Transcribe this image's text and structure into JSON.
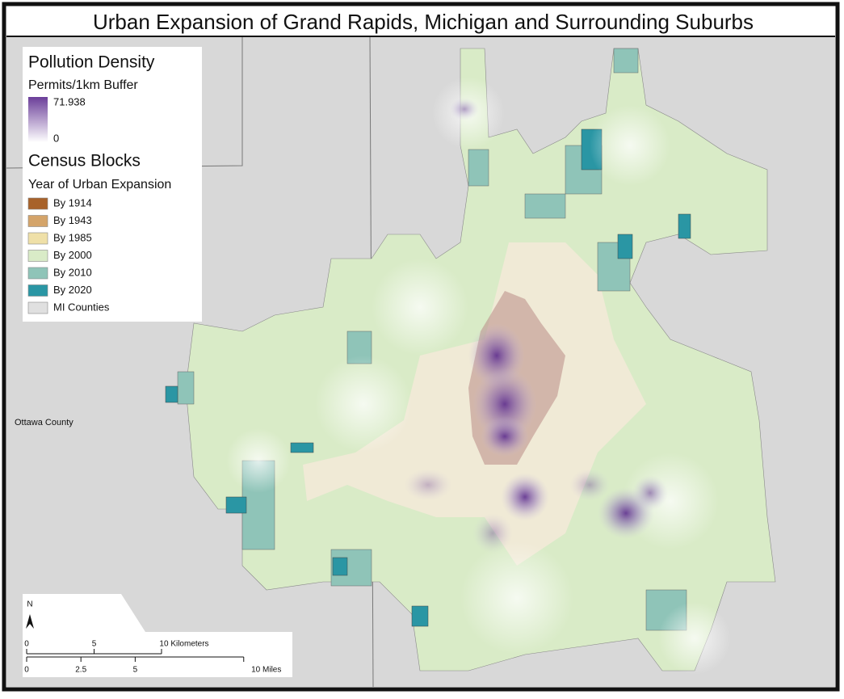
{
  "header": {
    "title": "Urban Expansion of Grand Rapids, Michigan and Surrounding Suburbs"
  },
  "legend": {
    "density_title": "Pollution Density",
    "density_subtitle": "Permits/1km Buffer",
    "density_max": 71.938,
    "density_min": 0,
    "density_colors": [
      "#6b3e99",
      "#ffffff"
    ],
    "blocks_title": "Census Blocks",
    "blocks_subtitle": "Year of Urban Expansion",
    "items": [
      {
        "label": "By 1914",
        "color": "#a8622a"
      },
      {
        "label": "By 1943",
        "color": "#d4a46a"
      },
      {
        "label": "By 1985",
        "color": "#efe0a8"
      },
      {
        "label": "By 2000",
        "color": "#d9ebc7"
      },
      {
        "label": "By 2010",
        "color": "#8fc4b8"
      },
      {
        "label": "By 2020",
        "color": "#2a96a4"
      },
      {
        "label": "MI Counties",
        "color": "#e0e0e0"
      }
    ]
  },
  "map_labels": {
    "county": "Ottawa County",
    "north": "N"
  },
  "scale_bar": {
    "km_ticks": [
      0,
      5,
      {
        "value": 10,
        "label": "10 Kilometers"
      }
    ],
    "mile_ticks": [
      0,
      2.5,
      5,
      {
        "value": 10,
        "label": "10 Miles"
      }
    ]
  }
}
